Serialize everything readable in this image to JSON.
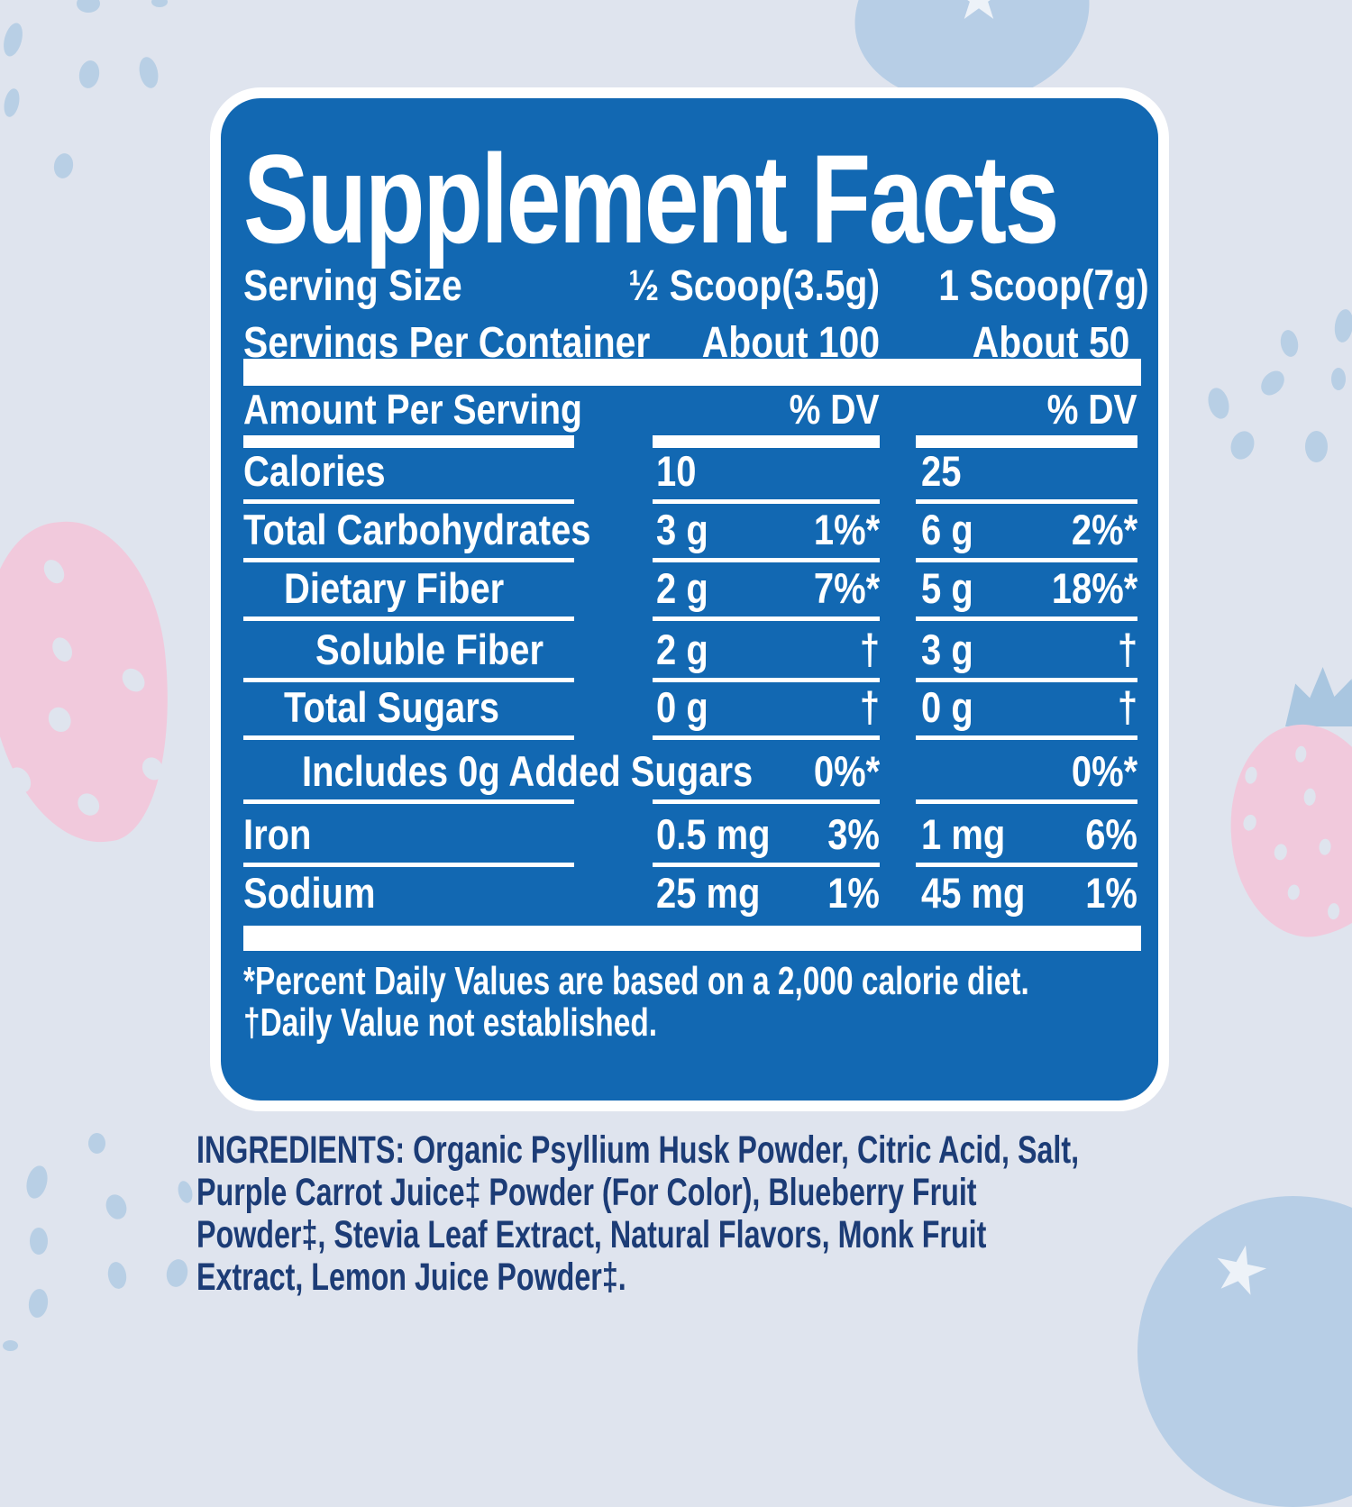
{
  "panel": {
    "title": "Supplement Facts",
    "serving": {
      "size_label": "Serving Size",
      "per_container_label": "Servings Per Container",
      "col1": {
        "size": "½ Scoop(3.5g)",
        "servings": "About 100"
      },
      "col2": {
        "size": "1 Scoop(7g)",
        "servings": "About 50"
      }
    },
    "table": {
      "header": {
        "amount": "Amount Per Serving",
        "dv1": "% DV",
        "dv2": "% DV"
      },
      "rows": [
        {
          "label": "Calories",
          "indent": 0,
          "v1": "10",
          "dv1": "",
          "v2": "25",
          "dv2": ""
        },
        {
          "label": "Total Carbohydrates",
          "indent": 0,
          "v1": "3 g",
          "dv1": "1%*",
          "v2": "6 g",
          "dv2": "2%*"
        },
        {
          "label": "Dietary Fiber",
          "indent": 1,
          "v1": "2 g",
          "dv1": "7%*",
          "v2": "5 g",
          "dv2": "18%*"
        },
        {
          "label": "Soluble Fiber",
          "indent": 2,
          "v1": "2 g",
          "dv1": "†",
          "v2": "3 g",
          "dv2": "†"
        },
        {
          "label": "Total Sugars",
          "indent": 1,
          "v1": "0 g",
          "dv1": "†",
          "v2": "0 g",
          "dv2": "†"
        },
        {
          "label": "Includes 0g Added Sugars",
          "indent": 2,
          "v1": "",
          "dv1": "0%*",
          "v2": "",
          "dv2": "0%*"
        },
        {
          "label": "Iron",
          "indent": 0,
          "v1": "0.5 mg",
          "dv1": "3%",
          "v2": "1 mg",
          "dv2": "6%"
        },
        {
          "label": "Sodium",
          "indent": 0,
          "v1": "25 mg",
          "dv1": "1%",
          "v2": "45 mg",
          "dv2": "1%"
        }
      ]
    },
    "footnotes": {
      "line1": "*Percent Daily Values are based on a 2,000 calorie diet.",
      "line2": "†Daily Value not established."
    }
  },
  "ingredients": {
    "label": "INGREDIENTS:",
    "lines": [
      "INGREDIENTS: Organic Psyllium Husk Powder, Citric Acid, Salt,",
      "Purple Carrot Juice‡ Powder (For Color), Blueberry Fruit",
      "Powder‡, Stevia Leaf Extract, Natural Flavors, Monk Fruit",
      "Extract, Lemon Juice Powder‡."
    ]
  },
  "icons": {
    "strawberry_left": "strawberry-icon",
    "strawberry_right": "strawberry-icon",
    "blueberry_top": "blueberry-icon",
    "blueberry_bottom": "blueberry-icon"
  },
  "colors": {
    "panel_blue": "#1268b2",
    "background": "#dfe4ee",
    "dot_blue": "#b8cfe5",
    "berry_blue": "#b7cee6",
    "strawberry_pink": "#f1c9dc",
    "calyx_blue": "#a9c6e0",
    "text_white": "#ffffff",
    "ingredients_navy": "#1c3c76"
  }
}
